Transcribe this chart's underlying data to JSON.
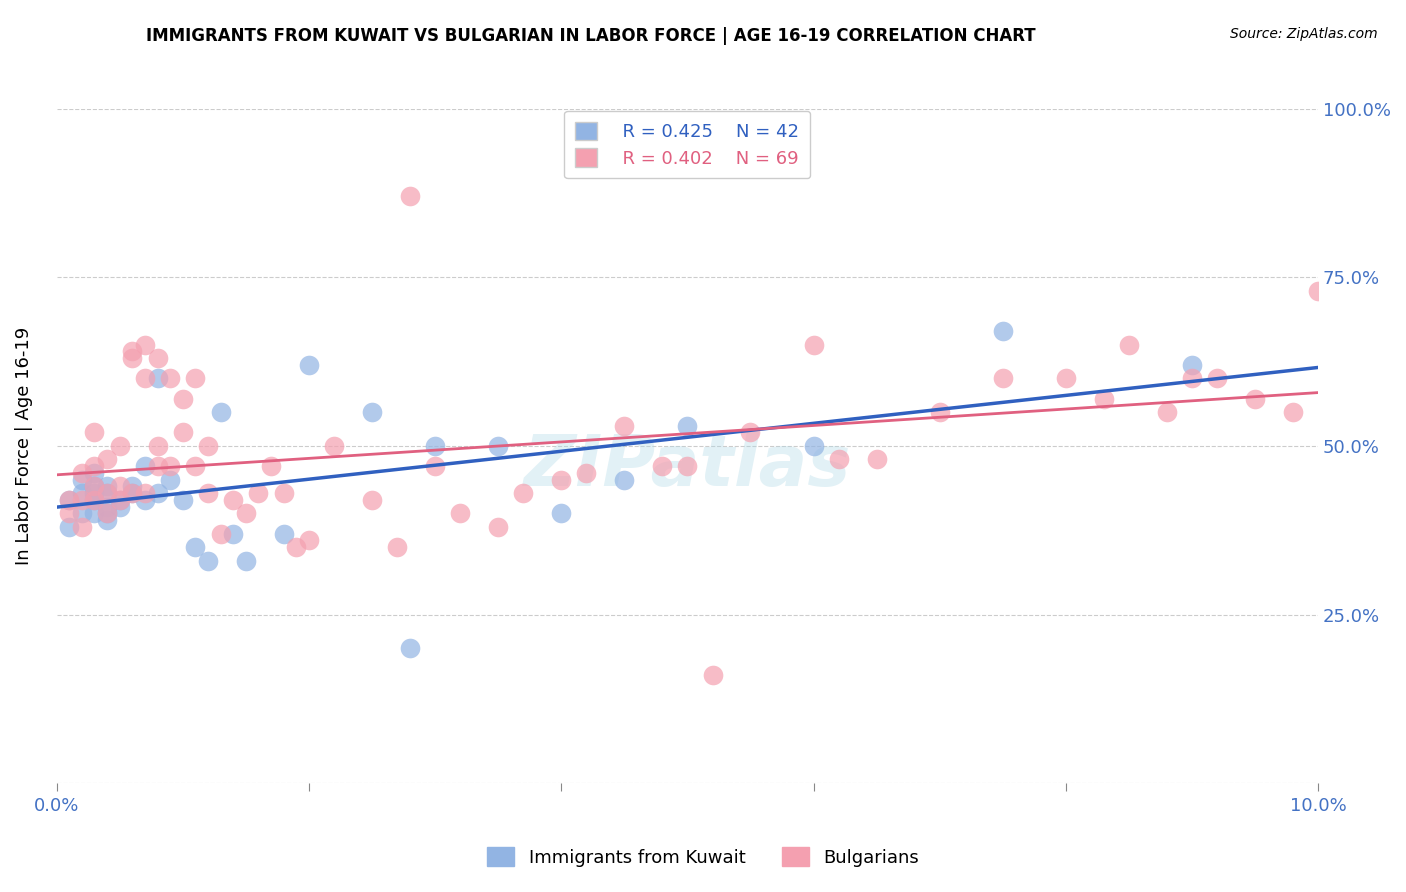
{
  "title": "IMMIGRANTS FROM KUWAIT VS BULGARIAN IN LABOR FORCE | AGE 16-19 CORRELATION CHART",
  "source": "Source: ZipAtlas.com",
  "ylabel": "In Labor Force | Age 16-19",
  "xlabel": "",
  "xlim": [
    0.0,
    0.1
  ],
  "ylim": [
    0.0,
    1.0
  ],
  "xticks": [
    0.0,
    0.02,
    0.04,
    0.06,
    0.08,
    0.1
  ],
  "xticklabels": [
    "0.0%",
    "",
    "",
    "",
    "",
    "10.0%"
  ],
  "yticks": [
    0.0,
    0.25,
    0.5,
    0.75,
    1.0
  ],
  "yticklabels": [
    "",
    "25.0%",
    "50.0%",
    "75.0%",
    "100.0%"
  ],
  "kuwait_R": 0.425,
  "kuwait_N": 42,
  "bulgarian_R": 0.402,
  "bulgarian_N": 69,
  "kuwait_color": "#92b4e3",
  "bulgarian_color": "#f4a0b0",
  "kuwait_line_color": "#3060c0",
  "bulgarian_line_color": "#e06080",
  "kuwait_x": [
    0.001,
    0.001,
    0.002,
    0.002,
    0.002,
    0.003,
    0.003,
    0.003,
    0.003,
    0.003,
    0.004,
    0.004,
    0.004,
    0.004,
    0.004,
    0.005,
    0.005,
    0.006,
    0.006,
    0.007,
    0.007,
    0.008,
    0.008,
    0.009,
    0.01,
    0.011,
    0.012,
    0.013,
    0.014,
    0.015,
    0.018,
    0.02,
    0.025,
    0.028,
    0.03,
    0.035,
    0.04,
    0.045,
    0.05,
    0.06,
    0.075,
    0.09
  ],
  "kuwait_y": [
    0.38,
    0.42,
    0.4,
    0.43,
    0.45,
    0.4,
    0.42,
    0.43,
    0.44,
    0.46,
    0.39,
    0.4,
    0.41,
    0.43,
    0.44,
    0.41,
    0.42,
    0.43,
    0.44,
    0.42,
    0.47,
    0.43,
    0.6,
    0.45,
    0.42,
    0.35,
    0.33,
    0.55,
    0.37,
    0.33,
    0.37,
    0.62,
    0.55,
    0.2,
    0.5,
    0.5,
    0.4,
    0.45,
    0.53,
    0.5,
    0.67,
    0.62
  ],
  "bulgarian_x": [
    0.001,
    0.001,
    0.002,
    0.002,
    0.002,
    0.003,
    0.003,
    0.003,
    0.003,
    0.004,
    0.004,
    0.004,
    0.005,
    0.005,
    0.005,
    0.006,
    0.006,
    0.006,
    0.007,
    0.007,
    0.007,
    0.008,
    0.008,
    0.008,
    0.009,
    0.009,
    0.01,
    0.01,
    0.011,
    0.011,
    0.012,
    0.012,
    0.013,
    0.014,
    0.015,
    0.016,
    0.017,
    0.018,
    0.019,
    0.02,
    0.022,
    0.025,
    0.027,
    0.028,
    0.03,
    0.032,
    0.035,
    0.037,
    0.04,
    0.042,
    0.045,
    0.048,
    0.05,
    0.052,
    0.055,
    0.06,
    0.062,
    0.065,
    0.07,
    0.075,
    0.08,
    0.083,
    0.085,
    0.088,
    0.09,
    0.092,
    0.095,
    0.098,
    0.1
  ],
  "bulgarian_y": [
    0.4,
    0.42,
    0.38,
    0.42,
    0.46,
    0.42,
    0.44,
    0.47,
    0.52,
    0.4,
    0.43,
    0.48,
    0.42,
    0.44,
    0.5,
    0.64,
    0.63,
    0.43,
    0.43,
    0.6,
    0.65,
    0.47,
    0.5,
    0.63,
    0.47,
    0.6,
    0.52,
    0.57,
    0.47,
    0.6,
    0.43,
    0.5,
    0.37,
    0.42,
    0.4,
    0.43,
    0.47,
    0.43,
    0.35,
    0.36,
    0.5,
    0.42,
    0.35,
    0.87,
    0.47,
    0.4,
    0.38,
    0.43,
    0.45,
    0.46,
    0.53,
    0.47,
    0.47,
    0.16,
    0.52,
    0.65,
    0.48,
    0.48,
    0.55,
    0.6,
    0.6,
    0.57,
    0.65,
    0.55,
    0.6,
    0.6,
    0.57,
    0.55,
    0.73
  ],
  "legend_label_kuwait": "Immigrants from Kuwait",
  "legend_label_bulgarian": "Bulgarians",
  "watermark": "ZIPatlas",
  "title_fontsize": 12,
  "axis_tick_color": "#4472c4",
  "grid_color": "#cccccc",
  "background_color": "#ffffff"
}
